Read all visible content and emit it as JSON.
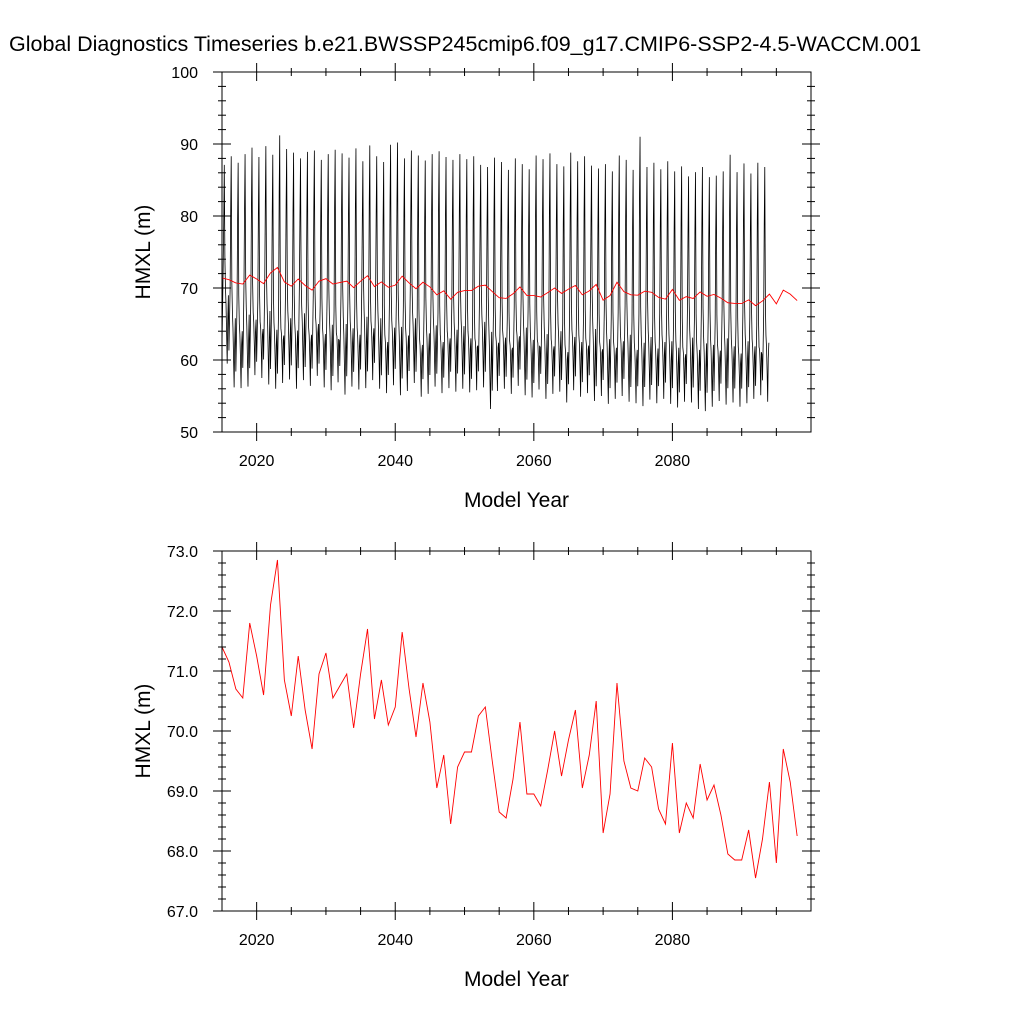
{
  "title": "Global Diagnostics Timeseries b.e21.BWSSP245cmip6.f09_g17.CMIP6-SSP2-4.5-WACCM.001",
  "chart_data": [
    {
      "type": "line",
      "xlabel": "Model Year",
      "ylabel": "HMXL (m)",
      "xlim": [
        2015,
        2100
      ],
      "ylim": [
        50,
        100
      ],
      "xticks": [
        2020,
        2040,
        2060,
        2080
      ],
      "yticks": [
        50,
        60,
        70,
        80,
        90,
        100
      ],
      "ytick_labels": [
        "50",
        "60",
        "70",
        "80",
        "90",
        "100"
      ],
      "grid": false,
      "series": [
        {
          "kind": "monthly",
          "color": "#000000",
          "x_start": 2015,
          "annual_max": [
            87.1,
            88.3,
            87.4,
            88.6,
            89.5,
            88.2,
            89.7,
            88.5,
            91.2,
            89.3,
            88.8,
            88.0,
            88.9,
            89.1,
            87.8,
            88.6,
            89.2,
            88.7,
            88.1,
            89.4,
            87.6,
            89.8,
            88.3,
            87.5,
            89.9,
            90.2,
            88.0,
            89.1,
            88.4,
            87.7,
            88.6,
            89.0,
            88.2,
            87.8,
            88.6,
            87.9,
            88.3,
            87.1,
            86.8,
            88.1,
            87.5,
            86.4,
            88.0,
            87.2,
            86.5,
            88.4,
            87.9,
            88.7,
            87.2,
            86.9,
            88.8,
            87.6,
            88.3,
            87.0,
            86.6,
            87.2,
            86.2,
            88.4,
            87.8,
            86.4,
            91.0,
            86.8,
            87.4,
            86.5,
            87.6,
            86.2,
            86.9,
            85.5,
            86.1,
            86.8,
            85.4,
            85.6,
            86.2,
            88.5,
            86.1,
            87.3,
            85.9,
            87.4,
            86.8
          ],
          "annual_min": [
            59.5,
            56.2,
            56.1,
            56.3,
            57.9,
            57.5,
            56.6,
            56.0,
            56.8,
            57.3,
            56.0,
            57.2,
            56.4,
            57.8,
            56.2,
            55.8,
            56.9,
            55.2,
            56.3,
            55.9,
            56.1,
            57.2,
            56.0,
            55.4,
            56.5,
            55.1,
            55.7,
            56.8,
            54.9,
            55.3,
            56.3,
            55.4,
            56.1,
            55.6,
            56.0,
            55.5,
            55.8,
            56.2,
            53.2,
            55.7,
            56.0,
            55.3,
            56.4,
            55.1,
            54.8,
            55.9,
            54.6,
            55.3,
            55.6,
            54.1,
            55.8,
            54.9,
            55.4,
            54.3,
            55.0,
            53.9,
            54.6,
            55.0,
            54.2,
            54.0,
            53.6,
            54.5,
            54.0,
            54.6,
            53.9,
            53.4,
            54.2,
            54.1,
            53.2,
            52.9,
            53.5,
            54.3,
            53.8,
            54.1,
            53.5,
            54.0,
            54.6,
            55.1,
            54.2
          ],
          "annual_midfall": [
            70.0,
            66.8,
            65.0,
            67.3,
            66.6,
            65.3,
            67.8,
            65.2,
            64.4,
            66.8,
            65.1,
            67.5,
            64.5,
            66.0,
            64.6,
            65.9,
            63.7,
            66.0,
            65.4,
            64.5,
            67.0,
            65.4,
            66.8,
            63.5,
            65.5,
            65.6,
            64.4,
            66.8,
            63.1,
            64.7,
            65.8,
            63.5,
            64.0,
            65.2,
            65.7,
            64.0,
            63.0,
            66.3,
            64.9,
            63.4,
            64.1,
            62.7,
            64.3,
            65.5,
            63.8,
            62.8,
            64.6,
            62.9,
            65.0,
            62.1,
            64.2,
            63.5,
            63.0,
            65.3,
            62.5,
            63.9,
            62.7,
            63.6,
            64.5,
            62.4,
            63.4,
            64.2,
            62.6,
            63.5,
            63.6,
            62.7,
            61.8,
            64.1,
            62.4,
            63.3,
            63.1,
            62.3,
            64.0,
            62.9,
            61.9,
            63.6,
            62.9,
            61.8,
            63.4
          ]
        },
        {
          "kind": "annual_mean",
          "color": "#ff0000",
          "x_start": 2015,
          "values": [
            71.4,
            71.15,
            70.7,
            70.55,
            71.8,
            71.25,
            70.6,
            72.1,
            72.85,
            70.85,
            70.25,
            71.25,
            70.35,
            69.7,
            70.95,
            71.3,
            70.55,
            70.75,
            70.95,
            70.05,
            70.95,
            71.7,
            70.2,
            70.85,
            70.1,
            70.4,
            71.65,
            70.7,
            69.9,
            70.8,
            70.15,
            69.05,
            69.6,
            68.45,
            69.4,
            69.65,
            69.65,
            70.25,
            70.4,
            69.5,
            68.65,
            68.55,
            69.2,
            70.15,
            68.95,
            68.95,
            68.75,
            69.35,
            70.0,
            69.25,
            69.85,
            70.35,
            69.05,
            69.6,
            70.5,
            68.3,
            68.95,
            70.8,
            69.5,
            69.05,
            69.0,
            69.55,
            69.4,
            68.7,
            68.45,
            69.8,
            68.3,
            68.8,
            68.55,
            69.45,
            68.85,
            69.1,
            68.6,
            67.95,
            67.85,
            67.85,
            68.35,
            67.55,
            68.2,
            69.15,
            67.8,
            69.7,
            69.15,
            68.25
          ]
        }
      ]
    },
    {
      "type": "line",
      "xlabel": "Model Year",
      "ylabel": "HMXL (m)",
      "xlim": [
        2015,
        2100
      ],
      "ylim": [
        67.0,
        73.0
      ],
      "xticks": [
        2020,
        2040,
        2060,
        2080
      ],
      "yticks": [
        67,
        68,
        69,
        70,
        71,
        72,
        73
      ],
      "ytick_labels": [
        "67.0",
        "68.0",
        "69.0",
        "70.0",
        "71.0",
        "72.0",
        "73.0"
      ],
      "grid": false,
      "series": [
        {
          "kind": "annual_mean",
          "color": "#ff0000",
          "x_start": 2015,
          "values": [
            71.4,
            71.15,
            70.7,
            70.55,
            71.8,
            71.25,
            70.6,
            72.1,
            72.85,
            70.85,
            70.25,
            71.25,
            70.35,
            69.7,
            70.95,
            71.3,
            70.55,
            70.75,
            70.95,
            70.05,
            70.95,
            71.7,
            70.2,
            70.85,
            70.1,
            70.4,
            71.65,
            70.7,
            69.9,
            70.8,
            70.15,
            69.05,
            69.6,
            68.45,
            69.4,
            69.65,
            69.65,
            70.25,
            70.4,
            69.5,
            68.65,
            68.55,
            69.2,
            70.15,
            68.95,
            68.95,
            68.75,
            69.35,
            70.0,
            69.25,
            69.85,
            70.35,
            69.05,
            69.6,
            70.5,
            68.3,
            68.95,
            70.8,
            69.5,
            69.05,
            69.0,
            69.55,
            69.4,
            68.7,
            68.45,
            69.8,
            68.3,
            68.8,
            68.55,
            69.45,
            68.85,
            69.1,
            68.6,
            67.95,
            67.85,
            67.85,
            68.35,
            67.55,
            68.2,
            69.15,
            67.8,
            69.7,
            69.15,
            68.25
          ]
        }
      ]
    }
  ]
}
